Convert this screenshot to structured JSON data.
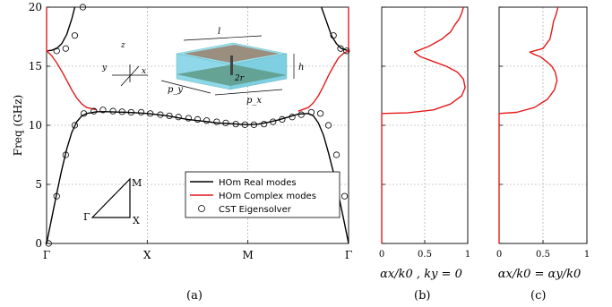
{
  "colors": {
    "real": "#000000",
    "complex": "#e31a1c",
    "cell_top": "#8dd3e8",
    "plate": "#8a8a7a",
    "ground": "#5f9e8a"
  },
  "chart_data": [
    {
      "id": "a",
      "type": "line",
      "panel_label": "(a)",
      "ylabel": "Freq (GHz)",
      "ylim": [
        0,
        20
      ],
      "xlim": [
        0,
        3
      ],
      "yticks": [
        "0",
        "5",
        "10",
        "15",
        "20"
      ],
      "xtick_positions": [
        0,
        1,
        2,
        3
      ],
      "xtick_labels": [
        "Γ",
        "X",
        "M",
        "Γ"
      ],
      "legend": {
        "placement": "bottom-right",
        "entries": [
          "HOm Real modes",
          "HOm Complex modes",
          "CST Eigensolver"
        ]
      },
      "series": [
        {
          "name": "HOm Real modes",
          "style": "solid",
          "color": "black",
          "x": [
            0,
            0.05,
            0.1,
            0.15,
            0.2,
            0.25,
            0.3,
            0.35,
            0.4,
            0.5,
            0.6,
            0.7,
            0.8,
            0.9,
            1.0,
            1.1,
            1.2,
            1.3,
            1.4,
            1.5,
            1.6,
            1.7,
            1.8,
            1.9,
            2.0,
            2.1,
            2.2,
            2.3,
            2.4,
            2.5,
            2.6,
            2.65,
            2.7,
            2.75,
            2.8,
            2.85,
            2.9,
            2.95,
            3.0
          ],
          "y": [
            0,
            2.1,
            4.2,
            6.2,
            8.0,
            9.4,
            10.3,
            10.8,
            11.0,
            11.15,
            11.15,
            11.12,
            11.1,
            11.05,
            11.0,
            10.9,
            10.8,
            10.65,
            10.5,
            10.4,
            10.3,
            10.2,
            10.15,
            10.1,
            10.05,
            10.1,
            10.25,
            10.45,
            10.7,
            10.95,
            11.0,
            10.8,
            10.2,
            9.2,
            7.7,
            6.0,
            4.1,
            2.1,
            0
          ]
        },
        {
          "name": "HOm Real modes",
          "style": "solid",
          "color": "black",
          "x": [
            0,
            0.05,
            0.1,
            0.15,
            0.2,
            0.25,
            0.28
          ],
          "y": [
            16.3,
            16.35,
            16.5,
            16.9,
            17.7,
            19.0,
            20
          ]
        },
        {
          "name": "HOm Real modes",
          "style": "solid",
          "color": "black",
          "x": [
            2.73,
            2.78,
            2.83,
            2.88,
            2.93,
            3.0
          ],
          "y": [
            20,
            18.8,
            17.6,
            16.9,
            16.5,
            16.3
          ]
        },
        {
          "name": "HOm Complex modes",
          "style": "solid",
          "color": "red",
          "x": [
            0,
            0.05,
            0.1,
            0.15,
            0.2,
            0.25,
            0.3,
            0.35,
            0.4,
            0.5
          ],
          "y": [
            16.3,
            15.9,
            15.3,
            14.6,
            13.8,
            13.0,
            12.3,
            11.8,
            11.5,
            11.3
          ]
        },
        {
          "name": "HOm Complex modes",
          "style": "solid",
          "color": "red",
          "x": [
            2.5,
            2.6,
            2.65,
            2.7,
            2.75,
            2.8,
            2.85,
            2.9,
            2.95,
            3.0
          ],
          "y": [
            11.2,
            11.5,
            11.9,
            12.5,
            13.3,
            14.2,
            15.0,
            15.7,
            16.1,
            16.3
          ]
        },
        {
          "name": "HOm Complex modes",
          "style": "solid",
          "color": "red",
          "x": [
            0,
            0,
            0.02
          ],
          "y": [
            20,
            16.3,
            16.3
          ]
        },
        {
          "name": "HOm Complex modes",
          "style": "solid",
          "color": "red",
          "x": [
            2.98,
            3.0,
            3.0
          ],
          "y": [
            16.3,
            16.3,
            20
          ]
        },
        {
          "name": "CST Eigensolver",
          "style": "markers",
          "x": [
            0.02,
            0.1,
            0.19,
            0.28,
            0.37,
            0.47,
            0.56,
            0.66,
            0.75,
            0.84,
            0.94,
            1.03,
            1.13,
            1.22,
            1.31,
            1.41,
            1.5,
            1.59,
            1.69,
            1.78,
            1.88,
            1.97,
            2.06,
            2.16,
            2.25,
            2.34,
            2.44,
            2.53,
            2.63,
            2.72,
            2.8,
            2.88,
            2.96,
            0.1,
            0.19,
            0.28,
            0.36,
            2.85,
            2.92,
            2.98
          ],
          "y": [
            0,
            4,
            7.5,
            10.0,
            11.0,
            11.2,
            11.3,
            11.2,
            11.15,
            11.1,
            11.1,
            11.0,
            10.9,
            10.8,
            10.7,
            10.6,
            10.5,
            10.4,
            10.3,
            10.2,
            10.1,
            10.05,
            10.05,
            10.1,
            10.3,
            10.5,
            10.7,
            10.9,
            11.1,
            11.0,
            10.0,
            7.5,
            4.0,
            16.3,
            16.5,
            17.6,
            20.0,
            17.6,
            16.5,
            16.3
          ]
        }
      ],
      "inset": {
        "labels": [
          "M",
          "Γ",
          "X"
        ],
        "axes_labels": [
          "z",
          "y",
          "x"
        ],
        "cell_labels": [
          "l",
          "h",
          "2r",
          "p_y",
          "p_x"
        ]
      }
    },
    {
      "id": "b",
      "type": "line",
      "panel_label": "(b)",
      "xlabel": "αx/k0 , ky = 0",
      "xlim": [
        0,
        1
      ],
      "ylim": [
        0,
        20
      ],
      "xticks": [
        "0",
        "0.5",
        "1"
      ],
      "series": [
        {
          "style": "solid",
          "color": "red",
          "x": [
            0,
            0,
            0.3,
            0.6,
            0.8,
            0.93,
            0.97,
            0.95,
            0.88,
            0.75,
            0.6,
            0.45,
            0.38,
            0.55,
            0.7,
            0.8,
            0.85,
            0.9,
            0.93,
            0.95
          ],
          "y": [
            0,
            11.0,
            11.05,
            11.3,
            11.8,
            12.5,
            13.2,
            13.9,
            14.5,
            15.0,
            15.4,
            15.8,
            16.2,
            16.7,
            17.3,
            17.9,
            18.5,
            19.0,
            19.5,
            20
          ]
        }
      ]
    },
    {
      "id": "c",
      "type": "line",
      "panel_label": "(c)",
      "xlabel": "αx/k0 = αy/k0",
      "xlim": [
        0,
        1
      ],
      "ylim": [
        0,
        20
      ],
      "xticks": [
        "0",
        "0.5",
        "1"
      ],
      "series": [
        {
          "style": "solid",
          "color": "red",
          "x": [
            0,
            0,
            0.2,
            0.4,
            0.55,
            0.63,
            0.66,
            0.64,
            0.6,
            0.54,
            0.47,
            0.4,
            0.35,
            0.5,
            0.58,
            0.6,
            0.62,
            0.65,
            0.67
          ],
          "y": [
            0,
            11.0,
            11.1,
            11.5,
            12.2,
            13.0,
            13.8,
            14.5,
            15.0,
            15.4,
            15.8,
            16.0,
            16.2,
            16.5,
            17.3,
            18.0,
            18.8,
            19.4,
            20
          ]
        }
      ]
    }
  ]
}
